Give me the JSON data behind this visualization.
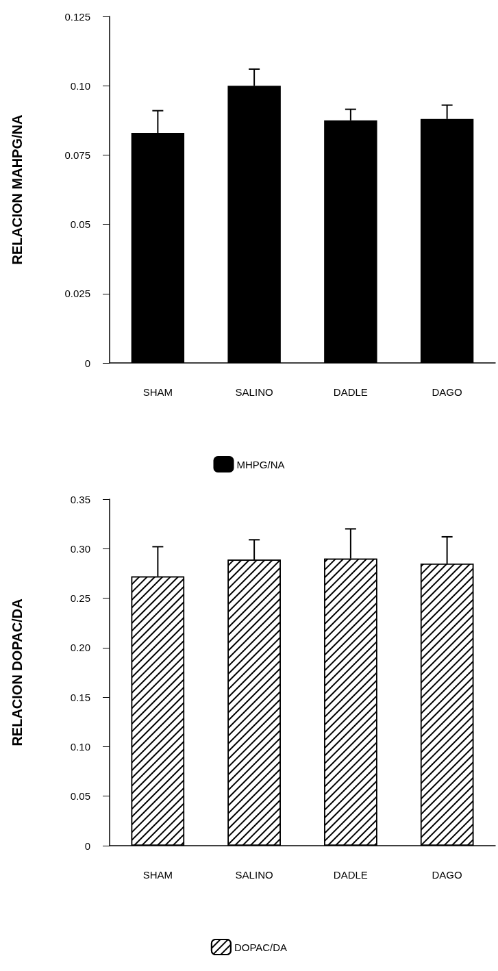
{
  "chart_data": [
    {
      "type": "bar",
      "ylabel": "RELACION MAHPG/NA",
      "categories": [
        "SHAM",
        "SALINO",
        "DADLE",
        "DAGO"
      ],
      "series": [
        {
          "name": "MHPG/NA",
          "color": "#000000",
          "values": [
            0.083,
            0.1,
            0.0875,
            0.088
          ],
          "errors": [
            [
              0.083,
              0.091
            ],
            [
              0.1,
              0.106
            ],
            [
              0.0875,
              0.0915
            ],
            [
              0.088,
              0.093
            ]
          ]
        }
      ],
      "ylim": [
        0,
        0.125
      ],
      "yticks": [
        0,
        0.025,
        0.05,
        0.075,
        {
          "value": 0.1,
          "label": "0.10"
        },
        0.125
      ],
      "grid": false,
      "legend": "bottom"
    },
    {
      "type": "bar",
      "ylabel": "RELACION DOPAC/DA",
      "categories": [
        "SHAM",
        "SALINO",
        "DADLE",
        "DAGO"
      ],
      "series": [
        {
          "name": "DOPAC/DA",
          "color": "#ffffff",
          "values": [
            0.272,
            0.289,
            0.29,
            0.285
          ],
          "errors": [
            [
              0.272,
              0.302
            ],
            [
              0.289,
              0.309
            ],
            [
              0.29,
              0.32
            ],
            [
              0.285,
              0.312
            ]
          ]
        }
      ],
      "ylim": [
        0,
        0.35
      ],
      "yticks": [
        0,
        0.05,
        {
          "value": 0.1,
          "label": "0.10"
        },
        0.15,
        {
          "value": 0.2,
          "label": "0.20"
        },
        0.25,
        {
          "value": 0.3,
          "label": "0.30"
        },
        0.35
      ],
      "grid": false,
      "legend": "bottom"
    }
  ]
}
